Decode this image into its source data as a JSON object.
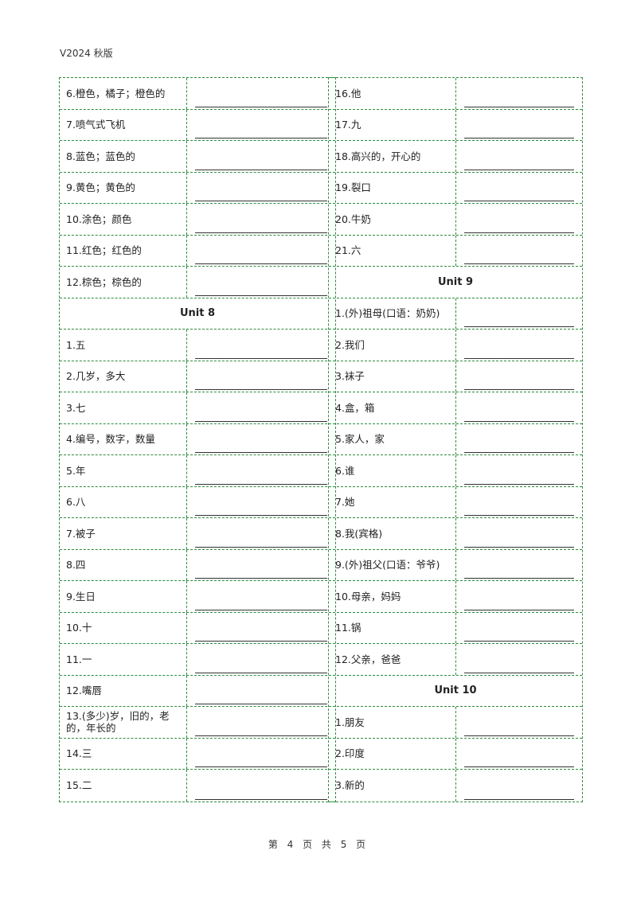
{
  "header": {
    "version": "V2024 秋版"
  },
  "left_column": [
    {
      "type": "word",
      "text": "6.橙色，橘子；橙色的"
    },
    {
      "type": "word",
      "text": "7.喷气式飞机"
    },
    {
      "type": "word",
      "text": "8.蓝色；蓝色的"
    },
    {
      "type": "word",
      "text": "9.黄色；黄色的"
    },
    {
      "type": "word",
      "text": "10.涂色；颜色"
    },
    {
      "type": "word",
      "text": "11.红色；红色的"
    },
    {
      "type": "word",
      "text": "12.棕色；棕色的"
    },
    {
      "type": "unit",
      "text": "Unit 8"
    },
    {
      "type": "word",
      "text": "1.五"
    },
    {
      "type": "word",
      "text": "2.几岁，多大"
    },
    {
      "type": "word",
      "text": "3.七"
    },
    {
      "type": "word",
      "text": "4.编号，数字，数量"
    },
    {
      "type": "word",
      "text": "5.年"
    },
    {
      "type": "word",
      "text": "6.八"
    },
    {
      "type": "word",
      "text": "7.被子"
    },
    {
      "type": "word",
      "text": "8.四"
    },
    {
      "type": "word",
      "text": "9.生日"
    },
    {
      "type": "word",
      "text": "10.十"
    },
    {
      "type": "word",
      "text": "11.一"
    },
    {
      "type": "word",
      "text": "12.嘴唇"
    },
    {
      "type": "word",
      "text": "13.(多少)岁，旧的，老的，年长的"
    },
    {
      "type": "word",
      "text": "14.三"
    },
    {
      "type": "word",
      "text": "15.二"
    }
  ],
  "right_column": [
    {
      "type": "word",
      "text": "16.他"
    },
    {
      "type": "word",
      "text": "17.九"
    },
    {
      "type": "word",
      "text": "18.高兴的，开心的"
    },
    {
      "type": "word",
      "text": "19.裂口"
    },
    {
      "type": "word",
      "text": "20.牛奶"
    },
    {
      "type": "word",
      "text": "21.六"
    },
    {
      "type": "unit",
      "text": "Unit 9"
    },
    {
      "type": "word",
      "text": "1.(外)祖母(口语：奶奶)"
    },
    {
      "type": "word",
      "text": "2.我们"
    },
    {
      "type": "word",
      "text": "3.袜子"
    },
    {
      "type": "word",
      "text": "4.盒，箱"
    },
    {
      "type": "word",
      "text": "5.家人，家"
    },
    {
      "type": "word",
      "text": "6.谁"
    },
    {
      "type": "word",
      "text": "7.她"
    },
    {
      "type": "word",
      "text": "8.我(宾格)"
    },
    {
      "type": "word",
      "text": "9.(外)祖父(口语：爷爷)"
    },
    {
      "type": "word",
      "text": "10.母亲，妈妈"
    },
    {
      "type": "word",
      "text": "11.锅"
    },
    {
      "type": "word",
      "text": "12.父亲，爸爸"
    },
    {
      "type": "unit",
      "text": "Unit 10"
    },
    {
      "type": "word",
      "text": "1.朋友"
    },
    {
      "type": "word",
      "text": "2.印度"
    },
    {
      "type": "word",
      "text": "3.新的"
    }
  ],
  "footer": {
    "page_text": "第 4 页 共 5 页"
  },
  "colors": {
    "border": "#2e8b3e"
  }
}
